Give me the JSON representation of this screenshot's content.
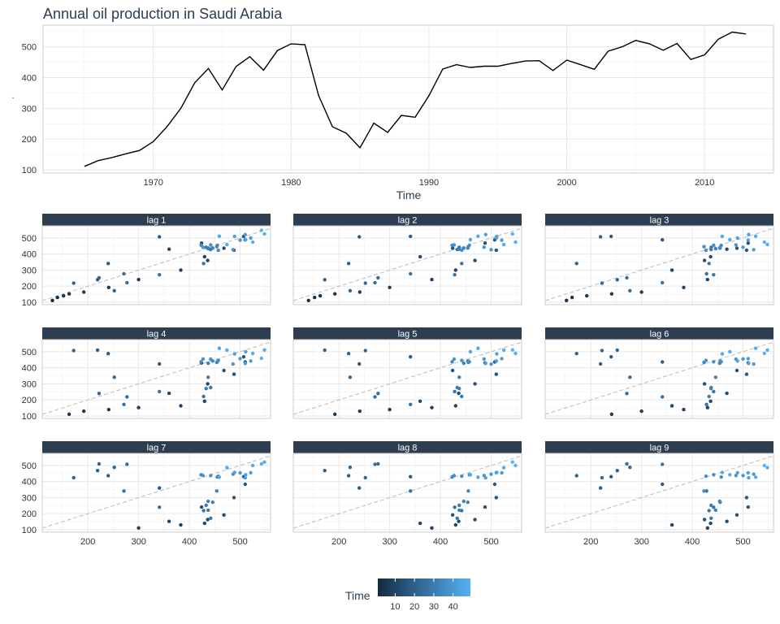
{
  "chart_data": {
    "type": "line+scatter-facets",
    "title": "Annual oil production in Saudi Arabia",
    "main": {
      "type": "line",
      "xlabel": "Time",
      "ylabel": ".",
      "xlim": [
        1965,
        2013
      ],
      "ylim": [
        100,
        560
      ],
      "x_ticks": [
        1970,
        1980,
        1990,
        2000,
        2010
      ],
      "y_ticks": [
        100,
        200,
        300,
        400,
        500
      ],
      "x": [
        1965,
        1966,
        1967,
        1968,
        1969,
        1970,
        1971,
        1972,
        1973,
        1974,
        1975,
        1976,
        1977,
        1978,
        1979,
        1980,
        1981,
        1982,
        1983,
        1984,
        1985,
        1986,
        1987,
        1988,
        1989,
        1990,
        1991,
        1992,
        1993,
        1994,
        1995,
        1996,
        1997,
        1998,
        1999,
        2000,
        2001,
        2002,
        2003,
        2004,
        2005,
        2006,
        2007,
        2008,
        2009,
        2010,
        2011,
        2012,
        2013
      ],
      "y": [
        111,
        130,
        140,
        152,
        163,
        192,
        241,
        300,
        383,
        430,
        360,
        436,
        468,
        424,
        488,
        510,
        507,
        341,
        240,
        219,
        172,
        252,
        222,
        277,
        271,
        341,
        428,
        442,
        433,
        437,
        437,
        446,
        454,
        455,
        423,
        457,
        442,
        427,
        486,
        500,
        521,
        510,
        489,
        511,
        459,
        474,
        525,
        548,
        542
      ]
    },
    "lags": {
      "facet_labels": [
        "lag 1",
        "lag 2",
        "lag 3",
        "lag 4",
        "lag 5",
        "lag 6",
        "lag 7",
        "lag 8",
        "lag 9"
      ],
      "x_ticks": [
        200,
        300,
        400,
        500
      ],
      "y_ticks": [
        100,
        200,
        300,
        400,
        500
      ],
      "xlim": [
        110,
        560
      ],
      "ylim": [
        100,
        560
      ],
      "reference_line": "y = x (dashed)"
    },
    "legend": {
      "title": "Time",
      "ticks": [
        10,
        20,
        30,
        40
      ],
      "range": [
        1,
        49
      ],
      "color_low": "#132b43",
      "color_high": "#56b1f7",
      "position": "bottom"
    }
  },
  "colors": {
    "line": "#000000",
    "strip": "#2c3e50",
    "grid": "#e6e6e6",
    "dashed": "#bbbbbb"
  }
}
